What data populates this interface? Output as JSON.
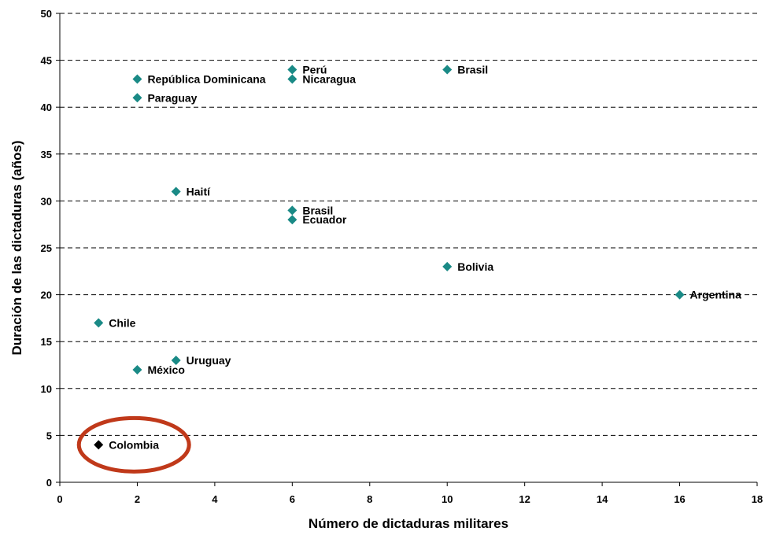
{
  "chart_data": {
    "type": "scatter",
    "xlabel": "Número de dictaduras militares",
    "ylabel": "Duración de las dictaduras (años)",
    "xlim": [
      0,
      18
    ],
    "ylim": [
      0,
      50
    ],
    "xticks": [
      "0",
      "2",
      "4",
      "6",
      "8",
      "10",
      "12",
      "14",
      "16",
      "18"
    ],
    "yticks": [
      "0",
      "5",
      "10",
      "15",
      "20",
      "25",
      "30",
      "35",
      "40",
      "45",
      "50"
    ],
    "grid": "horizontal dashed",
    "marker_color": "#1a8a86",
    "highlight_color": "#000000",
    "circle_color": "#c0391a",
    "points": [
      {
        "label": "República Dominicana",
        "x": 2,
        "y": 43
      },
      {
        "label": "Paraguay",
        "x": 2,
        "y": 41
      },
      {
        "label": "Perú",
        "x": 6,
        "y": 44
      },
      {
        "label": "Nicaragua",
        "x": 6,
        "y": 43
      },
      {
        "label": "Brasil",
        "x": 10,
        "y": 44
      },
      {
        "label": "Haití",
        "x": 3,
        "y": 31
      },
      {
        "label": "Brasil",
        "x": 6,
        "y": 29
      },
      {
        "label": "Ecuador",
        "x": 6,
        "y": 28
      },
      {
        "label": "Bolivia",
        "x": 10,
        "y": 23
      },
      {
        "label": "Argentina",
        "x": 16,
        "y": 20
      },
      {
        "label": "Chile",
        "x": 1,
        "y": 17
      },
      {
        "label": "Uruguay",
        "x": 3,
        "y": 13
      },
      {
        "label": "México",
        "x": 2,
        "y": 12
      },
      {
        "label": "Colombia",
        "x": 1,
        "y": 4,
        "highlighted": true
      }
    ]
  }
}
